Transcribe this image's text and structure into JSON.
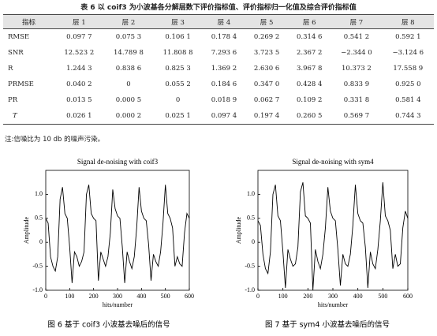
{
  "table": {
    "caption": "表 6  以 coif3 为小波基各分解层数下评价指标值、评价指标归一化值及综合评价指标值",
    "header": [
      "指标",
      "层 1",
      "层 2",
      "层 3",
      "层 4",
      "层 5",
      "层 6",
      "层 7",
      "层 8"
    ],
    "rows": [
      [
        "RMSE",
        "0.097 7",
        "0.075 3",
        "0.106 1",
        "0.178 4",
        "0.269 2",
        "0.314 6",
        "0.541 2",
        "0.592 1"
      ],
      [
        "SNR",
        "12.523 2",
        "14.789 8",
        "11.808 8",
        "7.293 6",
        "3.723 5",
        "2.367 2",
        "−2.344 0",
        "−3.124 6"
      ],
      [
        "R",
        "1.244 3",
        "0.838 6",
        "0.825 3",
        "1.369 2",
        "2.630 6",
        "3.967 8",
        "10.373 2",
        "17.558 9"
      ],
      [
        "PRMSE",
        "0.040 2",
        "0",
        "0.055 2",
        "0.184 6",
        "0.347 0",
        "0.428 4",
        "0.833 9",
        "0.925 0"
      ],
      [
        "PR",
        "0.013 5",
        "0.000 5",
        "0",
        "0.018 9",
        "0.062 7",
        "0.109 2",
        "0.331 8",
        "0.581 4"
      ],
      [
        "T",
        "0.026 1",
        "0.000 2",
        "0.025 1",
        "0.097 4",
        "0.197 4",
        "0.260 5",
        "0.569 7",
        "0.744 3"
      ]
    ]
  },
  "note": "注:信噪比为 10 db 的噪声污染。",
  "chart_data": [
    {
      "type": "line",
      "title": "Signal de-noising with coif3",
      "xlabel": "hits/number",
      "ylabel": "Amplitude",
      "caption": "图 6   基于 coif3 小波基去噪后的信号",
      "color": "#000000",
      "x": [
        0,
        10,
        20,
        30,
        40,
        50,
        60,
        70,
        80,
        90,
        100,
        110,
        120,
        130,
        140,
        150,
        160,
        170,
        180,
        190,
        200,
        210,
        220,
        230,
        240,
        250,
        260,
        270,
        280,
        290,
        300,
        310,
        320,
        330,
        340,
        350,
        360,
        370,
        380,
        390,
        400,
        410,
        420,
        430,
        440,
        450,
        460,
        470,
        480,
        490,
        500,
        510,
        520,
        530,
        540,
        550,
        560,
        570,
        580,
        590,
        600
      ],
      "values": [
        0.5,
        0.4,
        -0.3,
        -0.5,
        -0.6,
        -0.3,
        0.9,
        1.15,
        0.6,
        0.5,
        -0.1,
        -0.85,
        -0.2,
        -0.3,
        -0.5,
        -0.4,
        -0.2,
        1.0,
        1.2,
        0.6,
        0.5,
        0.45,
        -0.8,
        -0.2,
        -0.35,
        -0.5,
        -0.3,
        0.2,
        1.1,
        0.7,
        0.55,
        0.5,
        -0.1,
        -0.85,
        -0.2,
        -0.4,
        -0.55,
        -0.3,
        0.3,
        1.15,
        0.65,
        0.5,
        0.45,
        -0.05,
        -0.8,
        -0.25,
        -0.4,
        -0.5,
        -0.2,
        0.4,
        1.2,
        0.6,
        0.5,
        0.3,
        -0.5,
        -0.3,
        -0.45,
        -0.5,
        0.2,
        0.6,
        0.5
      ],
      "xlim": [
        0,
        600
      ],
      "ylim": [
        -1.0,
        1.5
      ],
      "xticks": [
        0,
        100,
        200,
        300,
        400,
        500,
        600
      ],
      "yticks": [
        {
          "value": -1.0,
          "label": "-1.0"
        },
        {
          "value": -0.5,
          "label": "-0.5"
        },
        0,
        {
          "value": 0.5,
          "label": "0.5"
        },
        {
          "value": 1.0,
          "label": "1.0"
        }
      ]
    },
    {
      "type": "line",
      "title": "Signal de-noising with sym4",
      "xlabel": "hits/number",
      "ylabel": "Amplitude",
      "caption": "图 7   基于 sym4 小波基去噪后的信号",
      "color": "#000000",
      "x": [
        0,
        10,
        20,
        30,
        40,
        50,
        60,
        70,
        80,
        90,
        100,
        110,
        120,
        130,
        140,
        150,
        160,
        170,
        180,
        190,
        200,
        210,
        220,
        230,
        240,
        250,
        260,
        270,
        280,
        290,
        300,
        310,
        320,
        330,
        340,
        350,
        360,
        370,
        380,
        390,
        400,
        410,
        420,
        430,
        440,
        450,
        460,
        470,
        480,
        490,
        500,
        510,
        520,
        530,
        540,
        550,
        560,
        570,
        580,
        590,
        600
      ],
      "values": [
        0.45,
        0.35,
        -0.25,
        -0.55,
        -0.65,
        -0.2,
        1.0,
        1.2,
        0.55,
        0.45,
        -0.2,
        -0.95,
        -0.15,
        -0.35,
        -0.5,
        -0.45,
        -0.1,
        1.05,
        1.25,
        0.55,
        0.5,
        0.4,
        -1.0,
        -0.15,
        -0.4,
        -0.55,
        -0.25,
        0.3,
        1.15,
        0.65,
        0.5,
        0.45,
        -0.15,
        -0.9,
        -0.25,
        -0.45,
        -0.5,
        -0.25,
        0.35,
        1.2,
        0.6,
        0.45,
        0.4,
        -0.1,
        -0.95,
        -0.2,
        -0.45,
        -0.55,
        -0.15,
        0.45,
        1.25,
        0.55,
        0.45,
        0.25,
        -0.55,
        -0.25,
        -0.5,
        -0.45,
        0.3,
        0.65,
        0.5
      ],
      "xlim": [
        0,
        600
      ],
      "ylim": [
        -1.0,
        1.5
      ],
      "xticks": [
        0,
        100,
        200,
        300,
        400,
        500,
        600
      ],
      "yticks": [
        {
          "value": -1.0,
          "label": "-1.0"
        },
        {
          "value": -0.5,
          "label": "-0.5"
        },
        0,
        {
          "value": 0.5,
          "label": "0.5"
        },
        {
          "value": 1.0,
          "label": "1.0"
        }
      ]
    }
  ]
}
